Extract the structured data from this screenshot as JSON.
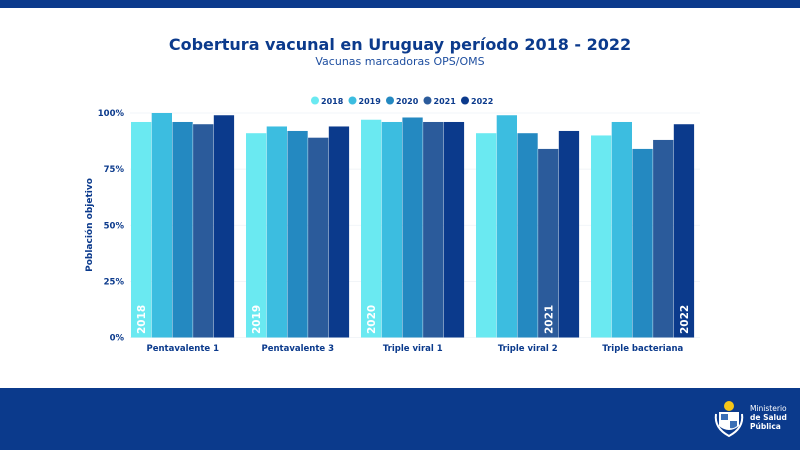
{
  "header": {
    "title": "Cobertura vacunal en Uruguay período 2018 - 2022",
    "subtitle": "Vacunas marcadoras OPS/OMS"
  },
  "footer": {
    "logo_line1": "Ministerio",
    "logo_line2": "de Salud",
    "logo_line3": "Pública"
  },
  "chart_data": {
    "type": "bar",
    "title": "Cobertura vacunal en Uruguay período 2018 - 2022",
    "subtitle": "Vacunas marcadoras OPS/OMS",
    "xlabel": "",
    "ylabel": "Población objetivo",
    "ylim": [
      0,
      100
    ],
    "yticks": [
      "0%",
      "25%",
      "50%",
      "75%",
      "100%"
    ],
    "ytick_values": [
      0,
      25,
      50,
      75,
      100
    ],
    "legend_position": "top-center",
    "categories": [
      "Pentavalente 1",
      "Pentavalente 3",
      "Triple viral 1",
      "Triple viral 2",
      "Triple bacteriana"
    ],
    "series": [
      {
        "name": "2018",
        "color": "#6ae9f1",
        "values": [
          96,
          91,
          97,
          91,
          90
        ]
      },
      {
        "name": "2019",
        "color": "#3cbde0",
        "values": [
          100,
          94,
          96,
          99,
          96
        ]
      },
      {
        "name": "2020",
        "color": "#2489c1",
        "values": [
          96,
          92,
          98,
          91,
          84
        ]
      },
      {
        "name": "2021",
        "color": "#2b5b9b",
        "values": [
          95,
          89,
          96,
          84,
          88
        ]
      },
      {
        "name": "2022",
        "color": "#0b3a8c",
        "values": [
          99,
          94,
          96,
          92,
          95
        ]
      }
    ],
    "bar_annotations": [
      {
        "text": "2018",
        "category": 0,
        "series": 0
      },
      {
        "text": "2019",
        "category": 1,
        "series": 0
      },
      {
        "text": "2020",
        "category": 2,
        "series": 0
      },
      {
        "text": "2021",
        "category": 3,
        "series": 3
      },
      {
        "text": "2022",
        "category": 4,
        "series": 4
      }
    ]
  }
}
